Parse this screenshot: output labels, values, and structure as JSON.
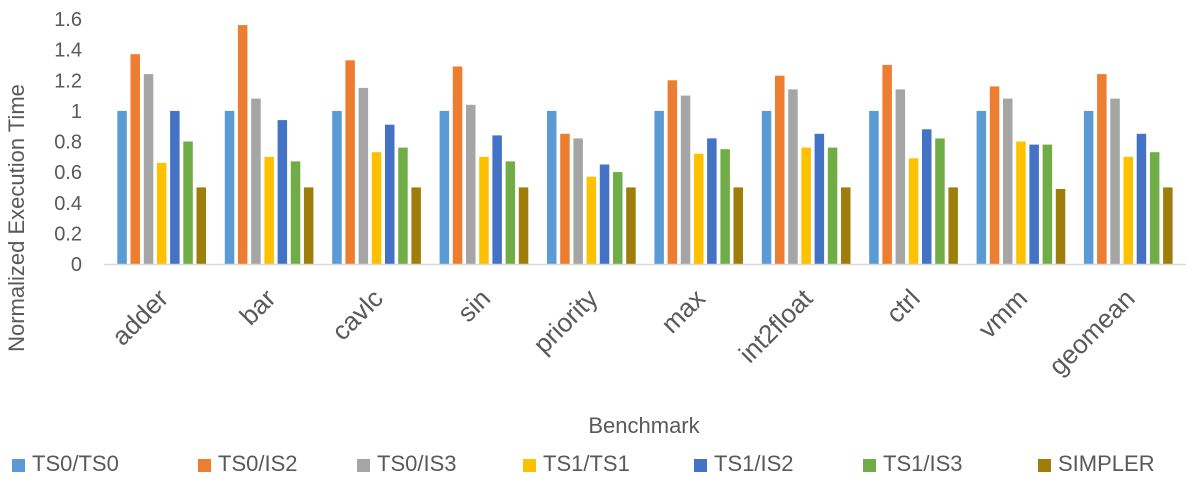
{
  "chart_data": {
    "type": "bar",
    "title": "",
    "xlabel": "Benchmark",
    "ylabel": "Normalized Execution Time",
    "ylim": [
      0,
      1.6
    ],
    "yticks": [
      "0",
      "0.2",
      "0.4",
      "0.6",
      "0.8",
      "1",
      "1.2",
      "1.4",
      "1.6"
    ],
    "grid": false,
    "legend_position": "bottom",
    "categories": [
      "adder",
      "bar",
      "cavlc",
      "sin",
      "priority",
      "max",
      "int2float",
      "ctrl",
      "vmm",
      "geomean"
    ],
    "series": [
      {
        "name": "TS0/TS0",
        "color": "#5B9BD5",
        "values": [
          1.0,
          1.0,
          1.0,
          1.0,
          1.0,
          1.0,
          1.0,
          1.0,
          1.0,
          1.0
        ]
      },
      {
        "name": "TS0/IS2",
        "color": "#ED7D31",
        "values": [
          1.37,
          1.56,
          1.33,
          1.29,
          0.85,
          1.2,
          1.23,
          1.3,
          1.16,
          1.24
        ]
      },
      {
        "name": "TS0/IS3",
        "color": "#A5A5A5",
        "values": [
          1.24,
          1.08,
          1.15,
          1.04,
          0.82,
          1.1,
          1.14,
          1.14,
          1.08,
          1.08
        ]
      },
      {
        "name": "TS1/TS1",
        "color": "#FFC000",
        "values": [
          0.66,
          0.7,
          0.73,
          0.7,
          0.57,
          0.72,
          0.76,
          0.69,
          0.8,
          0.7
        ]
      },
      {
        "name": "TS1/IS2",
        "color": "#4472C4",
        "values": [
          1.0,
          0.94,
          0.91,
          0.84,
          0.65,
          0.82,
          0.85,
          0.88,
          0.78,
          0.85
        ]
      },
      {
        "name": "TS1/IS3",
        "color": "#70AD47",
        "values": [
          0.8,
          0.67,
          0.76,
          0.67,
          0.6,
          0.75,
          0.76,
          0.82,
          0.78,
          0.73
        ]
      },
      {
        "name": "SIMPLER",
        "color": "#9E7D0B",
        "values": [
          0.5,
          0.5,
          0.5,
          0.5,
          0.5,
          0.5,
          0.5,
          0.5,
          0.49,
          0.5
        ]
      }
    ]
  }
}
